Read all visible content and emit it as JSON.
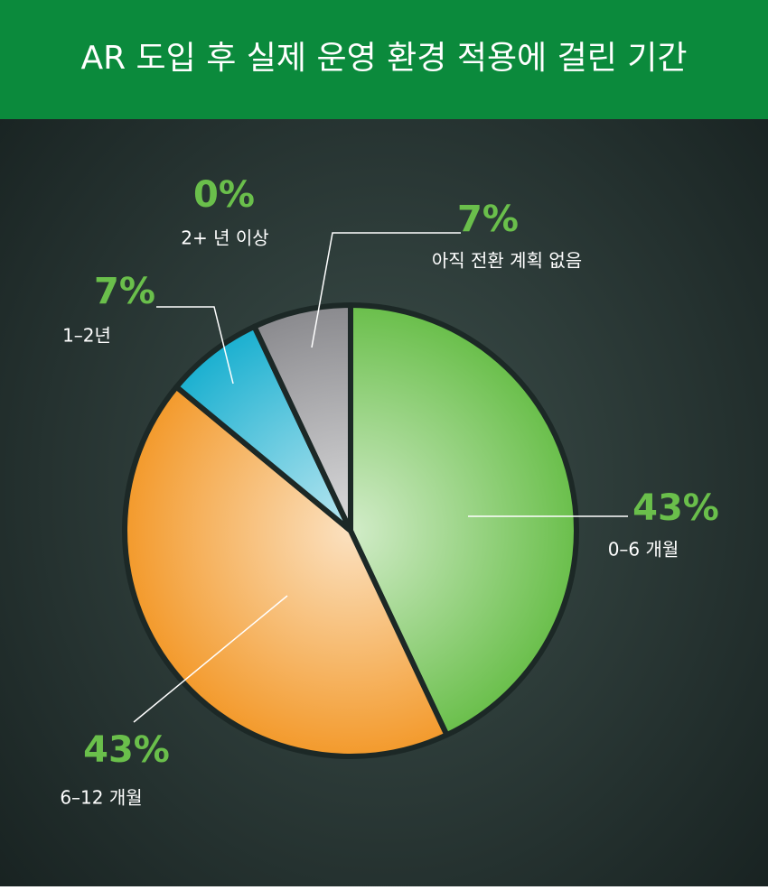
{
  "chart_data": {
    "type": "pie",
    "title": "AR 도입 후 실제 운영 환경 적용에 걸린 기간",
    "categories": [
      "0–6 개월",
      "6–12 개월",
      "1–2년",
      "2+ 년 이상",
      "아직 전환 계획 없음"
    ],
    "values": [
      43,
      43,
      7,
      0,
      7
    ],
    "value_labels": [
      "43%",
      "43%",
      "7%",
      "0%",
      "7%"
    ],
    "colors": [
      "#6abf4b",
      "#f39a2c",
      "#1bb0d0",
      "#9a9a9e",
      "#8a8a8e"
    ]
  }
}
